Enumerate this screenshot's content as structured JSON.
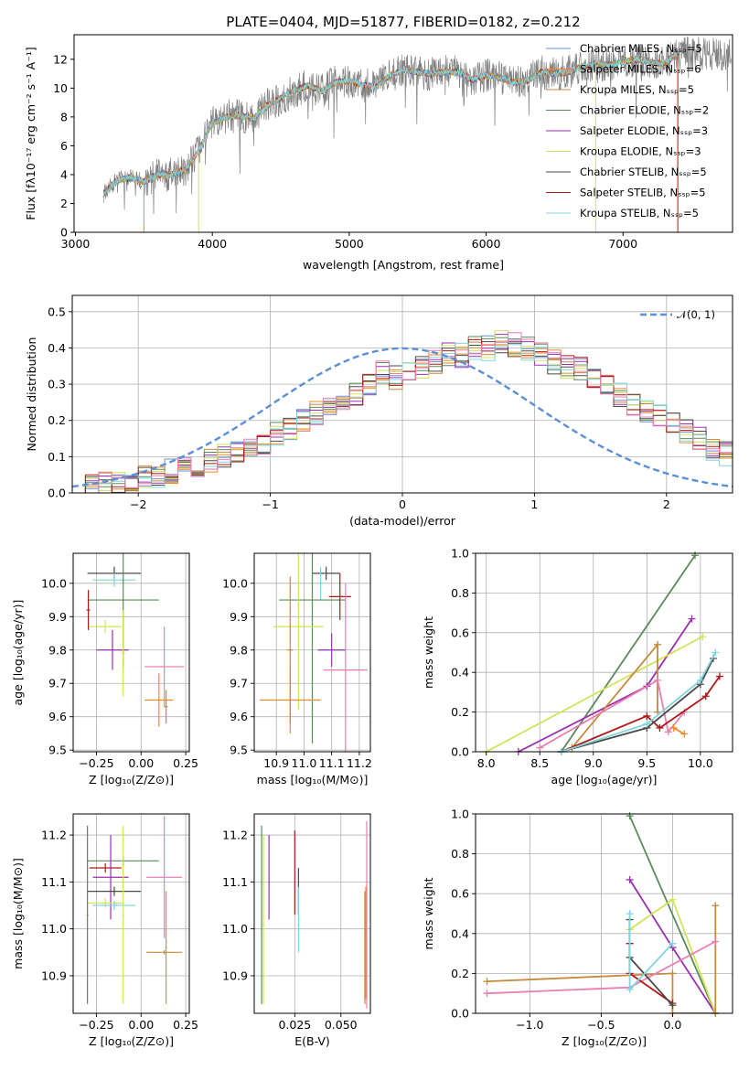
{
  "figure_title": "PLATE=0404, MJD=51877, FIBERID=0182, z=0.212",
  "colors": {
    "Chabrier MILES": "#6a8fd0",
    "Salpeter MILES": "#ef8a2a",
    "Kroupa MILES": "#c58a3c",
    "Chabrier ELODIE": "#5a8a5a",
    "Salpeter ELODIE": "#9a30b0",
    "Kroupa ELODIE": "#d2e35a",
    "Chabrier STELIB": "#4a4a4a",
    "Salpeter STELIB": "#b01818",
    "Kroupa STELIB": "#7fd6dc",
    "Salpeter MILES b": "#e97fb2",
    "gaussian": "#5b8fd6"
  },
  "chart_data": [
    {
      "id": "spectrum",
      "type": "line",
      "xlabel": "wavelength [Angstrom, rest frame]",
      "ylabel": "Flux [fλ10⁻¹⁷ erg cm⁻² s⁻¹ A⁻¹]",
      "xlim": [
        2990,
        7800
      ],
      "ylim": [
        0,
        13.7
      ],
      "xticks": [
        "3000",
        "4000",
        "5000",
        "6000",
        "7000"
      ],
      "yticks": [
        "0",
        "2",
        "4",
        "6",
        "8",
        "10",
        "12"
      ],
      "grid": false,
      "legend_position": "top-right",
      "legend": [
        "Chabrier MILES, Nₛₛₚ=5",
        "Salpeter MILES, Nₛₛₚ=6",
        "Kroupa MILES, Nₛₛₚ=5",
        "Chabrier ELODIE, Nₛₛₚ=2",
        "Salpeter ELODIE, Nₛₛₚ=3",
        "Kroupa ELODIE, Nₛₛₚ=3",
        "Chabrier STELIB, Nₛₛₚ=5",
        "Salpeter STELIB, Nₛₛₚ=5",
        "Kroupa STELIB, Nₛₛₚ=5"
      ],
      "model_wavelength": [
        3200,
        3300,
        3400,
        3500,
        3600,
        3700,
        3800,
        3900,
        4000,
        4100,
        4200,
        4300,
        4400,
        4500,
        4600,
        4700,
        4800,
        4900,
        5000,
        5100,
        5200,
        5300,
        5400,
        5500,
        5600,
        5700,
        5800,
        5900,
        6000,
        6100,
        6200,
        6300,
        6400,
        6500,
        6600,
        6700,
        6800,
        6900,
        7000,
        7100,
        7200,
        7300,
        7400
      ],
      "model_flux": [
        2.6,
        3.6,
        3.8,
        3.5,
        4.0,
        4.0,
        4.3,
        5.6,
        7.6,
        8.0,
        8.1,
        7.9,
        8.8,
        9.3,
        9.8,
        10.2,
        9.8,
        10.4,
        10.5,
        10.2,
        10.1,
        10.9,
        11.3,
        11.1,
        11.0,
        11.1,
        11.1,
        10.6,
        10.9,
        10.7,
        10.4,
        10.5,
        11.1,
        11.0,
        11.1,
        11.5,
        11.6,
        11.6,
        11.8,
        12.0,
        11.8,
        11.7,
        12.4
      ]
    },
    {
      "id": "residual-histogram",
      "type": "bar",
      "xlabel": "(data-model)/error",
      "ylabel": "Normed distribution",
      "xlim": [
        -2.5,
        2.5
      ],
      "ylim": [
        0,
        0.545
      ],
      "xticks": [
        "−2",
        "−1",
        "0",
        "1",
        "2"
      ],
      "yticks": [
        "0.0",
        "0.1",
        "0.2",
        "0.3",
        "0.4",
        "0.5"
      ],
      "grid": true,
      "legend_position": "top-right",
      "gaussian_label": "𝒩(0, 1)",
      "bin_width": 0.1,
      "bin_start": -2.5,
      "base_values": [
        0.02,
        0.02,
        0.03,
        0.03,
        0.04,
        0.05,
        0.05,
        0.06,
        0.07,
        0.08,
        0.09,
        0.1,
        0.11,
        0.13,
        0.14,
        0.16,
        0.18,
        0.2,
        0.22,
        0.24,
        0.25,
        0.27,
        0.3,
        0.33,
        0.32,
        0.33,
        0.35,
        0.36,
        0.38,
        0.38,
        0.4,
        0.4,
        0.42,
        0.41,
        0.4,
        0.38,
        0.36,
        0.35,
        0.34,
        0.32,
        0.29,
        0.27,
        0.25,
        0.23,
        0.21,
        0.19,
        0.17,
        0.15,
        0.12,
        0.11,
        0.1
      ]
    },
    {
      "id": "age-vs-Z",
      "type": "scatter",
      "xlabel": "Z [log₁₀(Z/Z⊙)]",
      "ylabel": "age  [log₁₀(age/yr)]",
      "xlim": [
        -0.38,
        0.27
      ],
      "ylim": [
        9.495,
        10.09
      ],
      "xticks": [
        -0.25,
        0.0,
        0.25
      ],
      "xticklabels": [
        "−0.25",
        "0.00",
        "0.25"
      ],
      "yticks": [
        9.5,
        9.6,
        9.7,
        9.8,
        9.9,
        10.0
      ],
      "yticklabels": [
        "9.5",
        "9.6",
        "9.7",
        "9.8",
        "9.9",
        "10.0"
      ],
      "grid": true,
      "points": [
        {
          "series": "Chabrier STELIB",
          "x": -0.15,
          "xerr": 0.15,
          "y": 10.03,
          "yerr": 0.02
        },
        {
          "series": "Kroupa STELIB",
          "x": -0.15,
          "xerr": 0.12,
          "y": 10.01,
          "yerr": 0.02
        },
        {
          "series": "Chabrier ELODIE",
          "x": -0.1,
          "xerr": 0.2,
          "y": 9.95,
          "yerr": 0.2
        },
        {
          "series": "Salpeter STELIB",
          "x": -0.295,
          "xerr": 0.01,
          "y": 9.92,
          "yerr": 0.06
        },
        {
          "series": "Kroupa ELODIE",
          "x": -0.2,
          "xerr": 0.09,
          "y": 9.87,
          "yerr": 0.02
        },
        {
          "series": "Salpeter ELODIE",
          "x": -0.16,
          "xerr": 0.09,
          "y": 9.8,
          "yerr": 0.06
        },
        {
          "series": "Kroupa ELODIE",
          "x": -0.1,
          "xerr": 0.01,
          "y": 9.79,
          "yerr": 0.13
        },
        {
          "series": "Salpeter MILES b",
          "x": 0.13,
          "xerr": 0.11,
          "y": 9.75,
          "yerr": 0.12
        },
        {
          "series": "Salpeter MILES",
          "x": 0.1,
          "xerr": 0.08,
          "y": 9.65,
          "yerr": 0.08
        },
        {
          "series": "Kroupa MILES",
          "x": 0.14,
          "xerr": 0.01,
          "y": 9.63,
          "yerr": 0.05
        }
      ]
    },
    {
      "id": "age-vs-mass",
      "type": "scatter",
      "xlabel": "mass [log₁₀(M/M⊙)]",
      "ylabel": "",
      "xlim": [
        10.82,
        11.24
      ],
      "ylim": [
        9.495,
        10.09
      ],
      "xticks": [
        10.9,
        11.0,
        11.1,
        11.2
      ],
      "xticklabels": [
        "10.9",
        "11.0",
        "11.1",
        "11.2"
      ],
      "yticks": [
        9.5,
        9.6,
        9.7,
        9.8,
        9.9,
        10.0
      ],
      "yticklabels": [
        "9.5",
        "9.6",
        "9.7",
        "9.8",
        "9.9",
        "10.0"
      ],
      "grid": true,
      "points": [
        {
          "series": "Chabrier STELIB",
          "x": 11.08,
          "xerr": 0.05,
          "y": 10.03,
          "yerr": 0.02
        },
        {
          "series": "Kroupa STELIB",
          "x": 11.06,
          "xerr": 0.01,
          "y": 10.0,
          "yerr": 0.05
        },
        {
          "series": "Chabrier ELODIE",
          "x": 11.03,
          "xerr": 0.12,
          "y": 9.95,
          "yerr": 0.43
        },
        {
          "series": "Salpeter STELIB",
          "x": 11.13,
          "xerr": 0.04,
          "y": 9.96,
          "yerr": 0.07
        },
        {
          "series": "Kroupa ELODIE",
          "x": 10.98,
          "xerr": 0.09,
          "y": 9.87,
          "yerr": 0.25
        },
        {
          "series": "Salpeter ELODIE",
          "x": 11.1,
          "xerr": 0.05,
          "y": 9.8,
          "yerr": 0.05
        },
        {
          "series": "Salpeter MILES b",
          "x": 11.15,
          "xerr": 0.08,
          "y": 9.74,
          "yerr": 0.26
        },
        {
          "series": "Salpeter MILES",
          "x": 10.95,
          "xerr": 0.11,
          "y": 9.65,
          "yerr": 0.1
        },
        {
          "series": "Kroupa MILES",
          "x": 10.95,
          "xerr": 0.01,
          "y": 9.8,
          "yerr": 0.22
        }
      ]
    },
    {
      "id": "weight-vs-age",
      "type": "line",
      "xlabel": "age  [log₁₀(age/yr)]",
      "ylabel": "mass weight",
      "xlim": [
        7.9,
        10.3
      ],
      "ylim": [
        0,
        1.0
      ],
      "xticks": [
        8.0,
        8.5,
        9.0,
        9.5,
        10.0
      ],
      "xticklabels": [
        "8.0",
        "8.5",
        "9.0",
        "9.5",
        "10.0"
      ],
      "yticks": [
        0,
        0.2,
        0.4,
        0.6,
        0.8,
        1.0
      ],
      "yticklabels": [
        "0.0",
        "0.2",
        "0.4",
        "0.6",
        "0.8",
        "1.0"
      ],
      "grid": true,
      "series": [
        {
          "name": "Chabrier ELODIE",
          "x": [
            8.7,
            9.95
          ],
          "y": [
            0.0,
            0.99
          ]
        },
        {
          "name": "Salpeter ELODIE",
          "x": [
            8.3,
            9.5,
            9.92
          ],
          "y": [
            0.0,
            0.33,
            0.67
          ]
        },
        {
          "name": "Kroupa ELODIE",
          "x": [
            8.0,
            10.02
          ],
          "y": [
            0.0,
            0.58
          ]
        },
        {
          "name": "Kroupa MILES",
          "x": [
            8.8,
            9.6,
            9.6
          ],
          "y": [
            0.02,
            0.54,
            0.2
          ]
        },
        {
          "name": "Salpeter MILES b",
          "x": [
            8.5,
            9.6,
            9.7,
            9.85
          ],
          "y": [
            0.02,
            0.36,
            0.1,
            0.2
          ]
        },
        {
          "name": "Salpeter STELIB",
          "x": [
            8.7,
            9.5,
            9.62,
            10.05,
            10.18
          ],
          "y": [
            0.0,
            0.18,
            0.12,
            0.28,
            0.38
          ]
        },
        {
          "name": "Chabrier STELIB",
          "x": [
            8.7,
            9.5,
            10.0,
            10.12
          ],
          "y": [
            0.0,
            0.12,
            0.34,
            0.47
          ]
        },
        {
          "name": "Kroupa STELIB",
          "x": [
            8.7,
            9.5,
            10.0,
            10.14
          ],
          "y": [
            0.0,
            0.14,
            0.36,
            0.5
          ]
        },
        {
          "name": "Salpeter MILES",
          "x": [
            9.75,
            9.85
          ],
          "y": [
            0.12,
            0.09
          ]
        }
      ]
    },
    {
      "id": "mass-vs-Z",
      "type": "scatter",
      "xlabel": "Z [log₁₀(Z/Z⊙)]",
      "ylabel": "mass [log₁₀(M/M⊙)]",
      "xlim": [
        -0.38,
        0.27
      ],
      "ylim": [
        10.82,
        11.245
      ],
      "xticks": [
        -0.25,
        0.0,
        0.25
      ],
      "xticklabels": [
        "−0.25",
        "0.00",
        "0.25"
      ],
      "yticks": [
        10.9,
        11.0,
        11.1,
        11.2
      ],
      "yticklabels": [
        "10.9",
        "11.0",
        "11.1",
        "11.2"
      ],
      "grid": true,
      "points": [
        {
          "series": "Chabrier ELODIE",
          "x": -0.1,
          "xerr": 0.2,
          "y": 11.145,
          "yerr": 0.01
        },
        {
          "series": "Salpeter STELIB",
          "x": -0.2,
          "xerr": 0.09,
          "y": 11.13,
          "yerr": 0.01
        },
        {
          "series": "Salpeter ELODIE",
          "x": -0.17,
          "xerr": 0.1,
          "y": 11.11,
          "yerr": 0.09
        },
        {
          "series": "Salpeter MILES b",
          "x": 0.13,
          "xerr": 0.1,
          "y": 11.11,
          "yerr": 0.13
        },
        {
          "series": "Chabrier STELIB",
          "x": -0.15,
          "xerr": 0.15,
          "y": 11.08,
          "yerr": 0.01
        },
        {
          "series": "Kroupa ELODIE",
          "x": -0.2,
          "xerr": 0.1,
          "y": 11.055,
          "yerr": 0.01
        },
        {
          "series": "Kroupa STELIB",
          "x": -0.15,
          "xerr": 0.12,
          "y": 11.05,
          "yerr": 0.01
        },
        {
          "series": "Chabrier ELODIE",
          "x": -0.3,
          "xerr": 0.005,
          "y": 11.03,
          "yerr": 0.19
        },
        {
          "series": "Kroupa ELODIE",
          "x": -0.1,
          "xerr": 0.005,
          "y": 11.03,
          "yerr": 0.19
        },
        {
          "series": "Kroupa MILES",
          "x": 0.13,
          "xerr": 0.1,
          "y": 10.95,
          "yerr": 0.005
        },
        {
          "series": "Salpeter MILES",
          "x": 0.14,
          "xerr": 0.005,
          "y": 10.96,
          "yerr": 0.12
        }
      ]
    },
    {
      "id": "mass-vs-EBV",
      "type": "scatter",
      "xlabel": "E(B-V)",
      "ylabel": "",
      "xlim": [
        0.003,
        0.066
      ],
      "ylim": [
        10.82,
        11.245
      ],
      "xticks": [
        0.025,
        0.05
      ],
      "xticklabels": [
        "0.025",
        "0.050"
      ],
      "yticks": [
        10.9,
        11.0,
        11.1,
        11.2
      ],
      "yticklabels": [
        "10.9",
        "11.0",
        "11.1",
        "11.2"
      ],
      "grid": true,
      "points": [
        {
          "series": "Chabrier ELODIE",
          "x": 0.007,
          "xerr": 0,
          "y": 11.03,
          "yerr": 0.19
        },
        {
          "series": "Kroupa ELODIE",
          "x": 0.008,
          "xerr": 0,
          "y": 11.02,
          "yerr": 0.18
        },
        {
          "series": "Salpeter ELODIE",
          "x": 0.011,
          "xerr": 0,
          "y": 11.11,
          "yerr": 0.09
        },
        {
          "series": "Salpeter STELIB",
          "x": 0.025,
          "xerr": 0,
          "y": 11.12,
          "yerr": 0.09
        },
        {
          "series": "Chabrier STELIB",
          "x": 0.027,
          "xerr": 0,
          "y": 11.08,
          "yerr": 0.05
        },
        {
          "series": "Kroupa STELIB",
          "x": 0.027,
          "xerr": 0,
          "y": 11.02,
          "yerr": 0.07
        },
        {
          "series": "Salpeter MILES b",
          "x": 0.064,
          "xerr": 0,
          "y": 11.03,
          "yerr": 0.2
        },
        {
          "series": "Kroupa MILES",
          "x": 0.063,
          "xerr": 0,
          "y": 10.96,
          "yerr": 0.12
        },
        {
          "series": "Salpeter MILES",
          "x": 0.0635,
          "xerr": 0,
          "y": 10.97,
          "yerr": 0.12
        }
      ]
    },
    {
      "id": "weight-vs-Z",
      "type": "line",
      "xlabel": "Z [log₁₀(Z/Z⊙)]",
      "ylabel": "mass weight",
      "xlim": [
        -1.38,
        0.42
      ],
      "ylim": [
        0,
        1.0
      ],
      "xticks": [
        -1.0,
        -0.5,
        0.0
      ],
      "xticklabels": [
        "−1.0",
        "−0.5",
        "0.0"
      ],
      "yticks": [
        0,
        0.2,
        0.4,
        0.6,
        0.8,
        1.0
      ],
      "yticklabels": [
        "0.0",
        "0.2",
        "0.4",
        "0.6",
        "0.8",
        "1.0"
      ],
      "grid": true,
      "series": [
        {
          "name": "Chabrier ELODIE",
          "x": [
            -0.3,
            0.3
          ],
          "y": [
            0.99,
            0.0
          ]
        },
        {
          "name": "Salpeter ELODIE",
          "x": [
            -0.3,
            0.0,
            0.3
          ],
          "y": [
            0.67,
            0.33,
            0.0
          ]
        },
        {
          "name": "Kroupa ELODIE",
          "x": [
            -0.3,
            0.0,
            0.3
          ],
          "y": [
            0.42,
            0.57,
            0.0
          ]
        },
        {
          "name": "Kroupa MILES",
          "x": [
            -1.3,
            0.0,
            0.0,
            0.3,
            0.3
          ],
          "y": [
            0.16,
            0.2,
            0.0,
            0.0,
            0.54
          ]
        },
        {
          "name": "Salpeter MILES b",
          "x": [
            -1.3,
            -0.3,
            0.3
          ],
          "y": [
            0.1,
            0.13,
            0.36
          ]
        },
        {
          "name": "Salpeter STELIB",
          "x": [
            -0.3,
            -0.3,
            0.0
          ],
          "y": [
            0.35,
            0.2,
            0.05
          ]
        },
        {
          "name": "Chabrier STELIB",
          "x": [
            -0.3,
            -0.3,
            0.0
          ],
          "y": [
            0.47,
            0.28,
            0.04
          ]
        },
        {
          "name": "Kroupa STELIB",
          "x": [
            -0.3,
            -0.3,
            0.0
          ],
          "y": [
            0.5,
            0.12,
            0.35
          ]
        }
      ]
    }
  ]
}
